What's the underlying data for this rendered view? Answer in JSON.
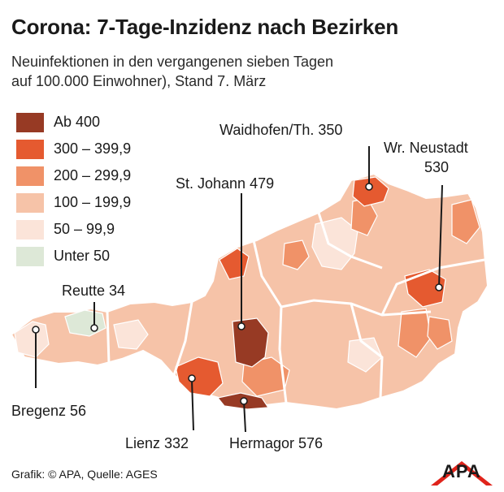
{
  "title": "Corona: 7-Tage-Inzidenz nach Bezirken",
  "subtitle_line1": "Neuinfektionen in den vergangenen sieben Tagen",
  "subtitle_line2": "auf 100.000 Einwohner), Stand 7. März",
  "legend": [
    {
      "label": "Ab 400",
      "color": "#973a24"
    },
    {
      "label": "300 – 399,9",
      "color": "#e55a30"
    },
    {
      "label": "200 – 299,9",
      "color": "#f09268"
    },
    {
      "label": "100 – 199,9",
      "color": "#f6c3a8"
    },
    {
      "label": "50 – 99,9",
      "color": "#fbe4d9"
    },
    {
      "label": "Unter 50",
      "color": "#dde8d7"
    }
  ],
  "callouts": {
    "waidhofen": "Waidhofen/Th. 350",
    "wr_neustadt_1": "Wr. Neustadt",
    "wr_neustadt_2": "530",
    "st_johann": "St. Johann 479",
    "reutte": "Reutte 34",
    "bregenz": "Bregenz 56",
    "lienz": "Lienz 332",
    "hermagor": "Hermagor 576"
  },
  "footer": "Grafik: © APA, Quelle: AGES",
  "logo": "APA"
}
